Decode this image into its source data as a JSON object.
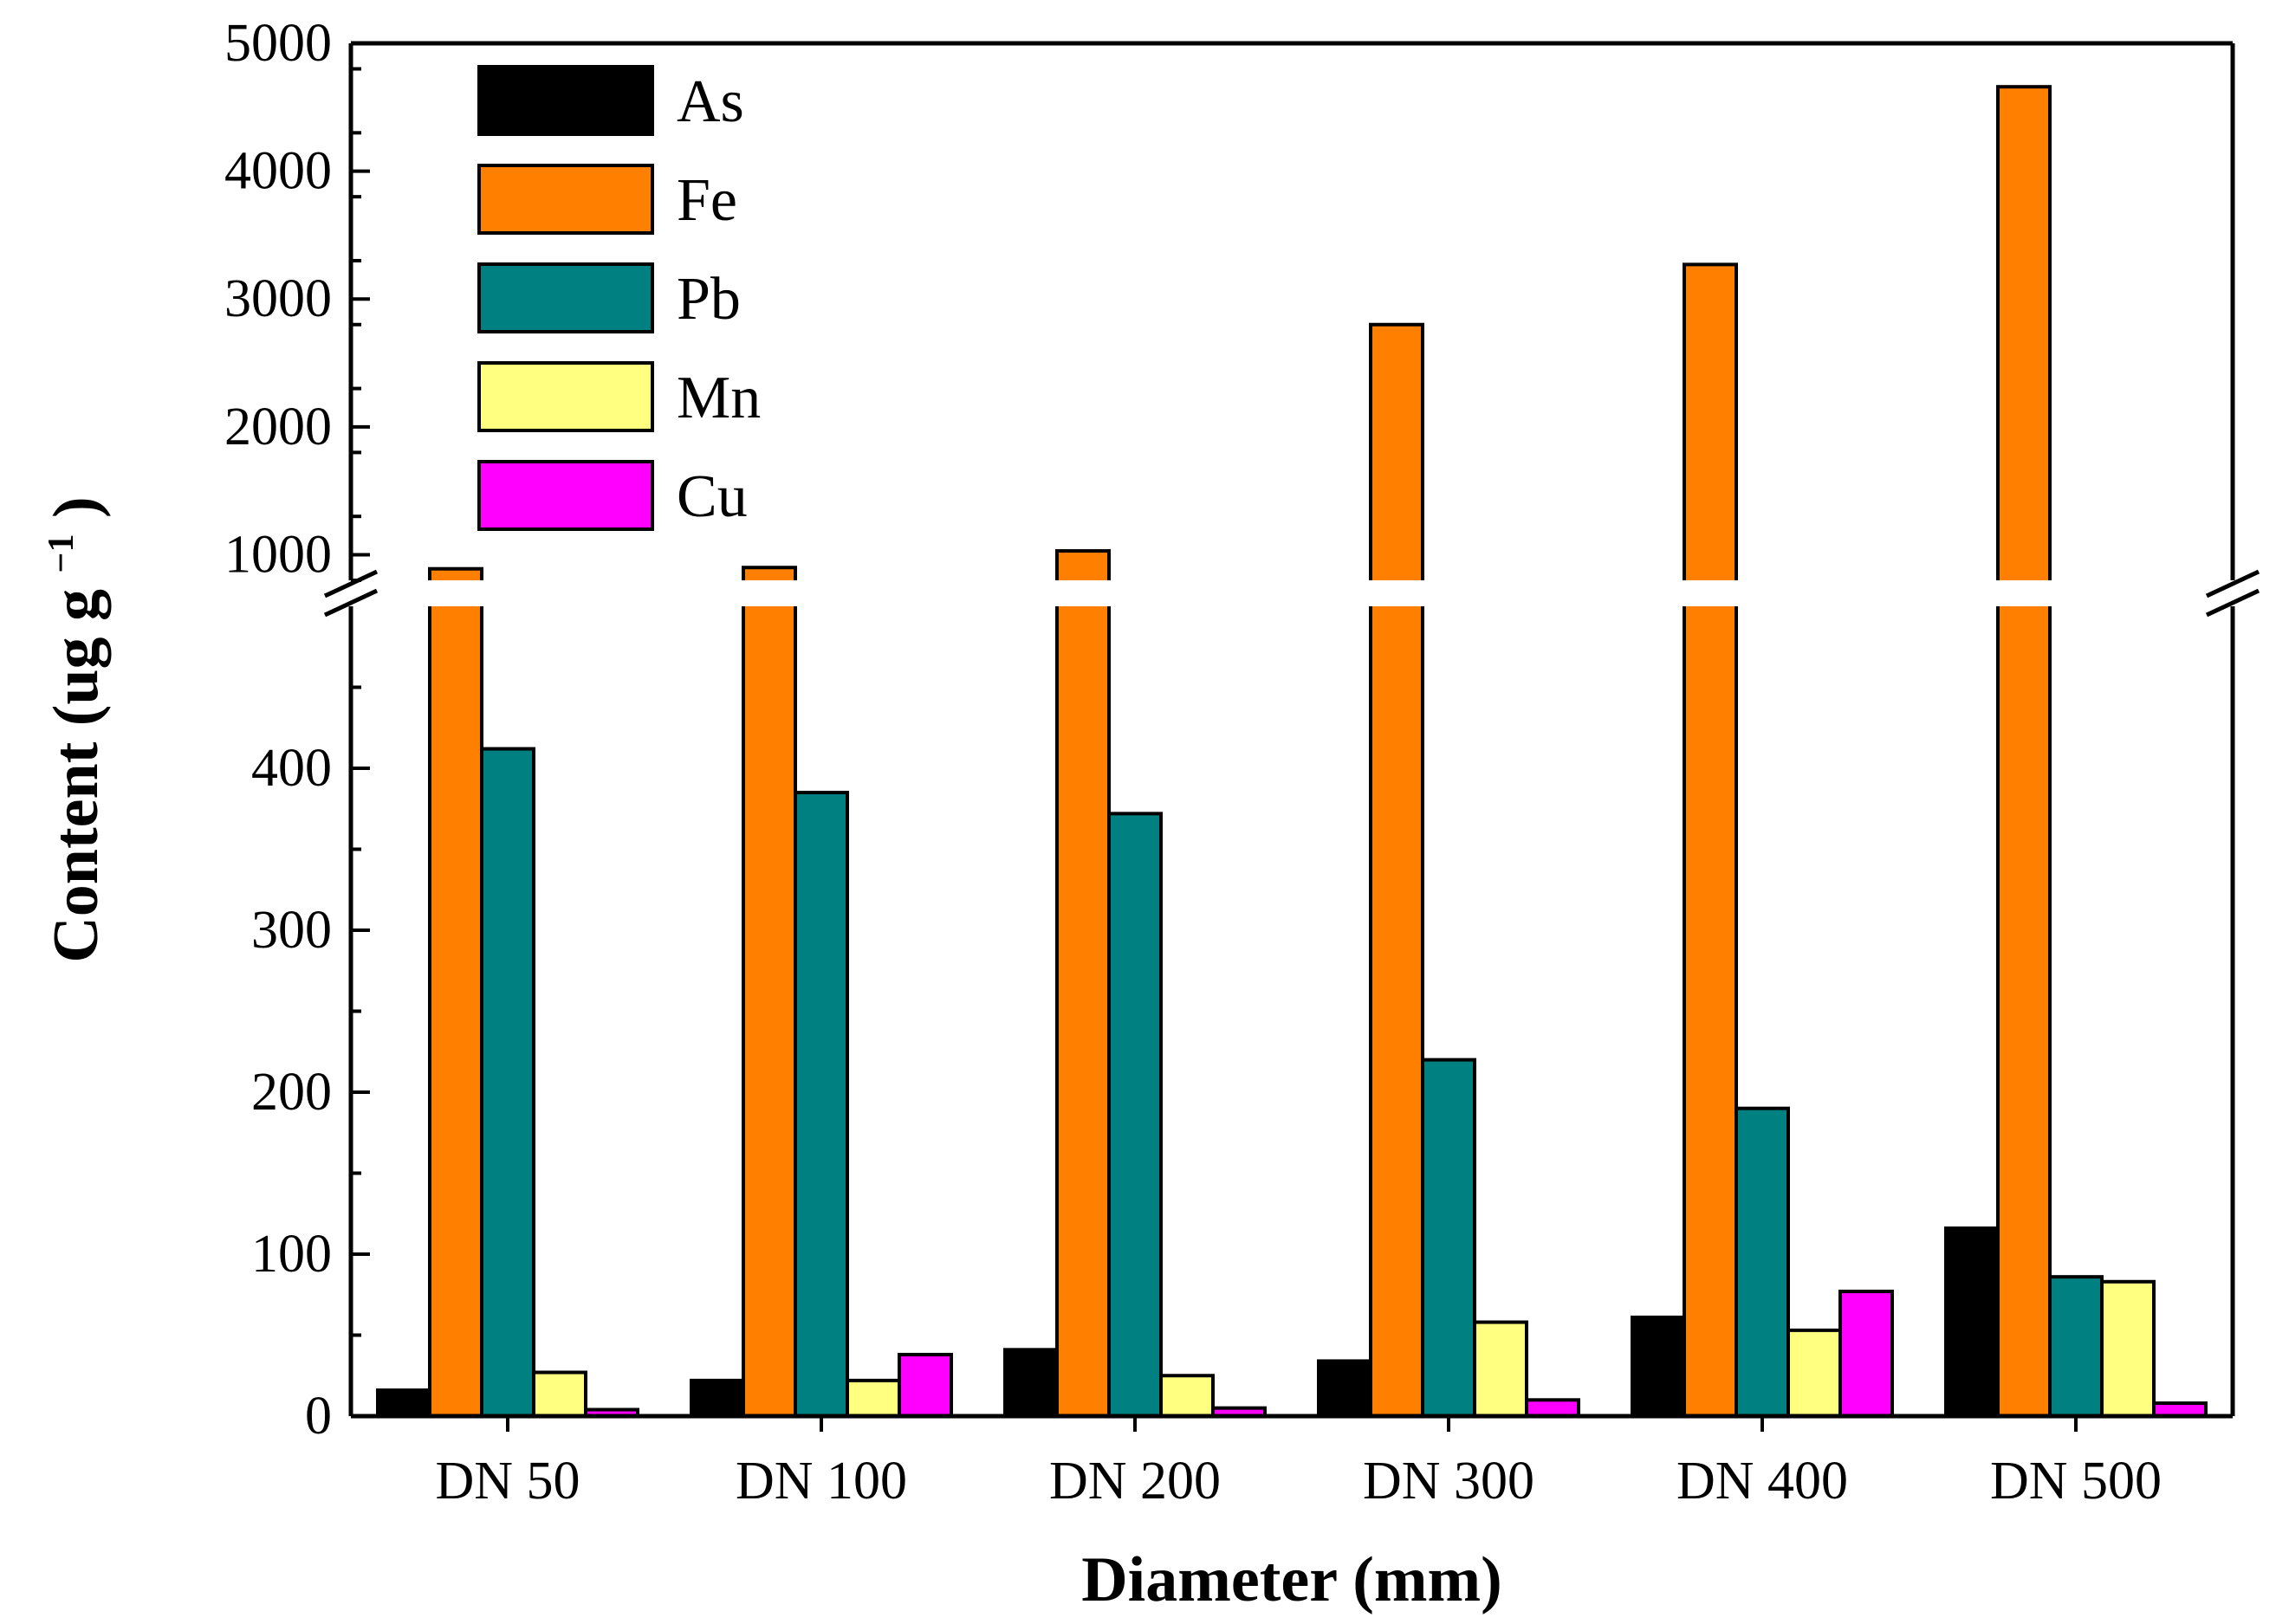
{
  "chart_data": {
    "type": "bar",
    "title": "",
    "xlabel": "Diameter (mm)",
    "ylabel_main": "Content",
    "ylabel_unit": "(ug g",
    "ylabel_sup": "−1",
    "ylabel_close": ")",
    "categories": [
      "DN 50",
      "DN 100",
      "DN 200",
      "DN 300",
      "DN 400",
      "DN 500"
    ],
    "series": [
      {
        "name": "As",
        "color": "#000000",
        "values": [
          16,
          22,
          41,
          34,
          61,
          116
        ]
      },
      {
        "name": "Fe",
        "color": "#FF8000",
        "values": [
          890,
          900,
          1030,
          2800,
          3270,
          4660
        ]
      },
      {
        "name": "Pb",
        "color": "#008080",
        "values": [
          412,
          385,
          372,
          220,
          190,
          86
        ]
      },
      {
        "name": "Mn",
        "color": "#FFFF80",
        "values": [
          27,
          22,
          25,
          58,
          53,
          83
        ]
      },
      {
        "name": "Cu",
        "color": "#FF00FF",
        "values": [
          4,
          38,
          5,
          10,
          77,
          8
        ]
      }
    ],
    "y_axis_lower": {
      "range": [
        0,
        500
      ],
      "ticks": [
        0,
        100,
        200,
        300,
        400
      ],
      "tick_labels": [
        "0",
        "100",
        "200",
        "300",
        "400"
      ]
    },
    "y_axis_upper": {
      "range": [
        800,
        5000
      ],
      "ticks": [
        1000,
        2000,
        3000,
        4000,
        5000
      ],
      "tick_labels": [
        "1000",
        "2000",
        "3000",
        "4000",
        "5000"
      ]
    },
    "axis_break": true,
    "legend_position": "top-left",
    "grid": false
  }
}
